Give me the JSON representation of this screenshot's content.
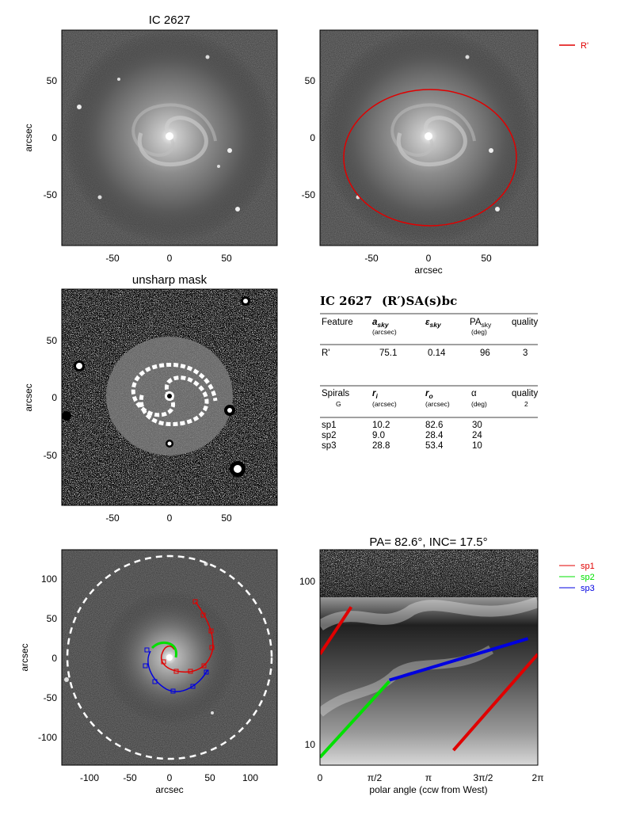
{
  "galaxy": {
    "name": "IC 2627",
    "classification": "(R′)SA(s)bc"
  },
  "colors": {
    "red": "#e00000",
    "green": "#00e000",
    "blue": "#0000e0",
    "white": "#ffffff"
  },
  "panels": {
    "top_left": {
      "title": "IC 2627",
      "ylabel": "arcsec",
      "xticks": [
        "-50",
        "0",
        "50"
      ],
      "yticks": [
        "50",
        "0",
        "-50"
      ]
    },
    "top_right": {
      "xlabel": "arcsec",
      "xticks": [
        "-50",
        "0",
        "50"
      ],
      "yticks": [
        "50",
        "0",
        "-50"
      ],
      "legend": [
        {
          "label": "R'",
          "color": "#e00000"
        }
      ]
    },
    "mid_left": {
      "title": "unsharp mask",
      "ylabel": "arcsec",
      "xticks": [
        "-50",
        "0",
        "50"
      ],
      "yticks": [
        "50",
        "0",
        "-50"
      ]
    },
    "bot_left": {
      "xlabel": "arcsec",
      "ylabel": "arcsec",
      "xticks": [
        "-100",
        "-50",
        "0",
        "50",
        "100"
      ],
      "yticks": [
        "100",
        "50",
        "0",
        "-50",
        "-100"
      ]
    },
    "bot_right": {
      "title": "PA=  82.6°, INC=  17.5°",
      "xlabel": "polar angle (ccw from West)",
      "xticks": [
        "0",
        "π/2",
        "π",
        "3π/2",
        "2π"
      ],
      "yticks": [
        "100",
        "10"
      ],
      "legend": [
        {
          "label": "sp1",
          "color": "#e00000"
        },
        {
          "label": "sp2",
          "color": "#00e000"
        },
        {
          "label": "sp3",
          "color": "#0000e0"
        }
      ]
    }
  },
  "table": {
    "title_name": "IC 2627",
    "title_class": "(R′)SA(s)bc",
    "ring_headers": {
      "feature": "Feature",
      "a": "a",
      "a_sub": "sky",
      "a_unit": "(arcsec)",
      "e": "ε",
      "e_sub": "sky",
      "pa": "PA",
      "pa_sub": "sky",
      "pa_unit": "(deg)",
      "quality": "quality"
    },
    "ring_row": {
      "feature": "R'",
      "a": "75.1",
      "e": "0.14",
      "pa": "96",
      "quality": "3"
    },
    "spiral_headers": {
      "spirals": "Spirals",
      "spirals_sub": "G",
      "ri": "r",
      "ri_sub": "i",
      "ri_unit": "(arcsec)",
      "ro": "r",
      "ro_sub": "o",
      "ro_unit": "(arcsec)",
      "alpha": "α",
      "alpha_unit": "(deg)",
      "quality": "quality",
      "quality_val": "2"
    },
    "spiral_rows": [
      {
        "name": "sp1",
        "ri": "10.2",
        "ro": "82.6",
        "alpha": "30"
      },
      {
        "name": "sp2",
        "ri": "9.0",
        "ro": "28.4",
        "alpha": "24"
      },
      {
        "name": "sp3",
        "ri": "28.8",
        "ro": "53.4",
        "alpha": "10"
      }
    ]
  },
  "chart_data": [
    {
      "type": "scatter",
      "panel": "polar-log-plot",
      "title": "PA=  82.6°, INC=  17.5°",
      "xlabel": "polar angle (ccw from West)",
      "xlim": [
        0,
        6.283
      ],
      "ylim": [
        8,
        200
      ],
      "yscale": "log",
      "series": [
        {
          "name": "sp1",
          "color": "#e00000",
          "segments": [
            [
              [
                0.0,
                42
              ],
              [
                0.9,
                85
              ]
            ],
            [
              [
                3.85,
                10
              ],
              [
                6.283,
                42
              ]
            ]
          ]
        },
        {
          "name": "sp2",
          "color": "#00e000",
          "segments": [
            [
              [
                0.0,
                9
              ],
              [
                2.0,
                28
              ]
            ]
          ]
        },
        {
          "name": "sp3",
          "color": "#0000e0",
          "segments": [
            [
              [
                2.0,
                28.5
              ],
              [
                6.0,
                53
              ]
            ]
          ]
        }
      ]
    }
  ]
}
